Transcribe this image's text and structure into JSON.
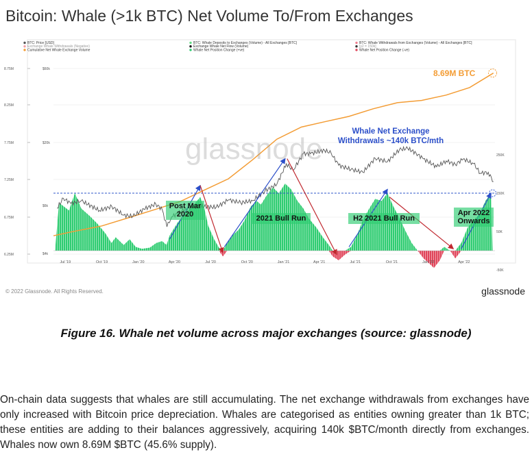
{
  "title": "Bitcoin: Whale (>1k BTC) Net Volume To/From Exchanges",
  "copyright": "© 2022 Glassnode. All Rights Reserved.",
  "brand": "glassnode",
  "watermark": "glassnode",
  "caption": "Figure 16. Whale net volume across major exchanges (source: glassnode)",
  "paragraph": "On-chain data suggests that whales are still accumulating. The net exchange withdrawals from exchanges have only increased with Bitcoin price depreciation. Whales are categorised as entities owning greater than 1k BTC; these entities are adding to their balances aggressively, acquiring 140k $BTC/month directly from exchanges. Whales now own 8.69M $BTC (45.6% supply).",
  "chart_data": {
    "type": "area",
    "legend": [
      {
        "label": "BTC: Price [USD]",
        "color": "#555555"
      },
      {
        "label": "Exchange Whale Withdrawals (Negative)",
        "color": "#f2a0a8"
      },
      {
        "label": "Cumulative Net Whale Exchange Volume",
        "color": "#f39c34"
      },
      {
        "label": "BTC: Whale Deposits to Exchanges (Volume) - All Exchanges [BTC]",
        "color": "#66dd88"
      },
      {
        "label": "Exchange Whale Net Flow (Volume)",
        "color": "#111111"
      },
      {
        "label": "Whale Net Position Change (+ve)",
        "color": "#2ecc71"
      },
      {
        "label": "BTC: Whale Withdrawals from Exchanges (Volume) - All Exchanges [BTC]",
        "color": "#f08090"
      },
      {
        "label": "[y2 = 150k]",
        "color": "#333333"
      },
      {
        "label": "Whale Net Position Change (-ve)",
        "color": "#e0455a"
      }
    ],
    "x_ticks": [
      "Jul '19",
      "Oct '19",
      "Jan '20",
      "Apr '20",
      "Jul '20",
      "Oct '20",
      "Jan '21",
      "Apr '21",
      "Jul '21",
      "Oct '21",
      "Jan '22",
      "Apr '22"
    ],
    "left_axis_1": [
      "8.75M",
      "8.25M",
      "7.75M",
      "7.25M",
      "6.75M",
      "6.25M"
    ],
    "left_axis_2": [
      "$60k",
      "$20k",
      "$6k",
      "$4k"
    ],
    "right_axis": [
      "250K",
      "150K",
      "50K",
      "-50K"
    ],
    "annotations": {
      "holdings": "8.69M BTC",
      "withdrawals": "Whale Net Exchange\nWithdrawals ~140k BTC/mth",
      "phase1": "Post Mar\n2020",
      "phase2": "2021 Bull Run",
      "phase3": "H2 2021 Bull Run",
      "phase4": "Apr 2022\nOnwards"
    },
    "net_position_change": [
      {
        "x": "2019-06-05",
        "y": 0
      },
      {
        "x": "2019-06-15",
        "y": 125
      },
      {
        "x": "2019-07-10",
        "y": 105
      },
      {
        "x": "2019-07-25",
        "y": 150
      },
      {
        "x": "2019-08-10",
        "y": 110
      },
      {
        "x": "2019-09-01",
        "y": 90
      },
      {
        "x": "2019-09-20",
        "y": 70
      },
      {
        "x": "2019-10-10",
        "y": 45
      },
      {
        "x": "2019-10-25",
        "y": 20
      },
      {
        "x": "2019-11-05",
        "y": 35
      },
      {
        "x": "2019-11-25",
        "y": 15
      },
      {
        "x": "2019-12-10",
        "y": 30
      },
      {
        "x": "2019-12-25",
        "y": 10
      },
      {
        "x": "2020-01-10",
        "y": 5
      },
      {
        "x": "2020-01-30",
        "y": 8
      },
      {
        "x": "2020-02-15",
        "y": 20
      },
      {
        "x": "2020-03-01",
        "y": 25
      },
      {
        "x": "2020-03-12",
        "y": 15
      },
      {
        "x": "2020-03-20",
        "y": 40
      },
      {
        "x": "2020-04-10",
        "y": 75
      },
      {
        "x": "2020-05-01",
        "y": 100
      },
      {
        "x": "2020-05-20",
        "y": 120
      },
      {
        "x": "2020-06-05",
        "y": 140
      },
      {
        "x": "2020-06-15",
        "y": 112
      },
      {
        "x": "2020-06-25",
        "y": 65
      },
      {
        "x": "2020-07-10",
        "y": 30
      },
      {
        "x": "2020-07-22",
        "y": 8
      },
      {
        "x": "2020-08-01",
        "y": -15
      },
      {
        "x": "2020-08-12",
        "y": 20
      },
      {
        "x": "2020-08-25",
        "y": 40
      },
      {
        "x": "2020-09-10",
        "y": 55
      },
      {
        "x": "2020-09-25",
        "y": 80
      },
      {
        "x": "2020-10-10",
        "y": 115
      },
      {
        "x": "2020-10-25",
        "y": 130
      },
      {
        "x": "2020-11-05",
        "y": 120
      },
      {
        "x": "2020-11-20",
        "y": 145
      },
      {
        "x": "2020-12-05",
        "y": 165
      },
      {
        "x": "2020-12-20",
        "y": 150
      },
      {
        "x": "2021-01-05",
        "y": 175
      },
      {
        "x": "2021-01-20",
        "y": 160
      },
      {
        "x": "2021-02-05",
        "y": 130
      },
      {
        "x": "2021-02-20",
        "y": 110
      },
      {
        "x": "2021-03-05",
        "y": 85
      },
      {
        "x": "2021-03-25",
        "y": 60
      },
      {
        "x": "2021-04-10",
        "y": 35
      },
      {
        "x": "2021-04-25",
        "y": 15
      },
      {
        "x": "2021-05-05",
        "y": -15
      },
      {
        "x": "2021-05-20",
        "y": -25
      },
      {
        "x": "2021-06-05",
        "y": -10
      },
      {
        "x": "2021-06-20",
        "y": 10
      },
      {
        "x": "2021-07-05",
        "y": 40
      },
      {
        "x": "2021-07-20",
        "y": 80
      },
      {
        "x": "2021-08-05",
        "y": 110
      },
      {
        "x": "2021-08-20",
        "y": 135
      },
      {
        "x": "2021-09-05",
        "y": 130
      },
      {
        "x": "2021-09-20",
        "y": 150
      },
      {
        "x": "2021-10-05",
        "y": 115
      },
      {
        "x": "2021-10-20",
        "y": 85
      },
      {
        "x": "2021-11-05",
        "y": 50
      },
      {
        "x": "2021-11-20",
        "y": 20
      },
      {
        "x": "2021-12-05",
        "y": 0
      },
      {
        "x": "2021-12-20",
        "y": -20
      },
      {
        "x": "2022-01-05",
        "y": -35
      },
      {
        "x": "2022-01-15",
        "y": -45
      },
      {
        "x": "2022-01-30",
        "y": -25
      },
      {
        "x": "2022-02-10",
        "y": 10
      },
      {
        "x": "2022-02-25",
        "y": 0
      },
      {
        "x": "2022-03-10",
        "y": -20
      },
      {
        "x": "2022-03-25",
        "y": 20
      },
      {
        "x": "2022-04-10",
        "y": 60
      },
      {
        "x": "2022-04-25",
        "y": 80
      },
      {
        "x": "2022-05-10",
        "y": 95
      },
      {
        "x": "2022-05-25",
        "y": 130
      },
      {
        "x": "2022-06-08",
        "y": 150
      },
      {
        "x": "2022-06-12",
        "y": 0
      }
    ],
    "btc_price_usd": [
      {
        "x": "2019-06-10",
        "y": 9000
      },
      {
        "x": "2019-06-26",
        "y": 12500
      },
      {
        "x": "2019-07-15",
        "y": 10500
      },
      {
        "x": "2019-08-10",
        "y": 11500
      },
      {
        "x": "2019-09-25",
        "y": 8300
      },
      {
        "x": "2019-10-26",
        "y": 9500
      },
      {
        "x": "2019-11-25",
        "y": 7100
      },
      {
        "x": "2019-12-18",
        "y": 6800
      },
      {
        "x": "2020-01-15",
        "y": 8700
      },
      {
        "x": "2020-02-14",
        "y": 10300
      },
      {
        "x": "2020-03-01",
        "y": 8600
      },
      {
        "x": "2020-03-13",
        "y": 4800
      },
      {
        "x": "2020-03-25",
        "y": 6700
      },
      {
        "x": "2020-04-30",
        "y": 8800
      },
      {
        "x": "2020-06-01",
        "y": 9700
      },
      {
        "x": "2020-07-15",
        "y": 9200
      },
      {
        "x": "2020-08-15",
        "y": 11900
      },
      {
        "x": "2020-09-15",
        "y": 10800
      },
      {
        "x": "2020-10-15",
        "y": 11500
      },
      {
        "x": "2020-11-15",
        "y": 16000
      },
      {
        "x": "2020-12-15",
        "y": 20000
      },
      {
        "x": "2021-01-08",
        "y": 40000
      },
      {
        "x": "2021-01-25",
        "y": 32000
      },
      {
        "x": "2021-02-20",
        "y": 56000
      },
      {
        "x": "2021-03-10",
        "y": 56000
      },
      {
        "x": "2021-04-14",
        "y": 63000
      },
      {
        "x": "2021-05-01",
        "y": 57000
      },
      {
        "x": "2021-05-20",
        "y": 38000
      },
      {
        "x": "2021-06-20",
        "y": 33000
      },
      {
        "x": "2021-07-20",
        "y": 30000
      },
      {
        "x": "2021-08-20",
        "y": 48000
      },
      {
        "x": "2021-09-20",
        "y": 43000
      },
      {
        "x": "2021-10-20",
        "y": 64000
      },
      {
        "x": "2021-11-10",
        "y": 67000
      },
      {
        "x": "2021-12-01",
        "y": 57000
      },
      {
        "x": "2021-12-20",
        "y": 47000
      },
      {
        "x": "2022-01-22",
        "y": 36000
      },
      {
        "x": "2022-02-15",
        "y": 44000
      },
      {
        "x": "2022-03-10",
        "y": 39000
      },
      {
        "x": "2022-03-30",
        "y": 47000
      },
      {
        "x": "2022-04-25",
        "y": 40000
      },
      {
        "x": "2022-05-12",
        "y": 29000
      },
      {
        "x": "2022-06-01",
        "y": 30000
      },
      {
        "x": "2022-06-14",
        "y": 22000
      }
    ],
    "cumulative_net_whale_volume_btc": [
      {
        "x": "2019-06-01",
        "y": 6.55
      },
      {
        "x": "2019-07-15",
        "y": 6.6
      },
      {
        "x": "2019-10-01",
        "y": 6.68
      },
      {
        "x": "2019-12-15",
        "y": 6.8
      },
      {
        "x": "2020-02-15",
        "y": 6.9
      },
      {
        "x": "2020-04-15",
        "y": 7.0
      },
      {
        "x": "2020-06-15",
        "y": 7.15
      },
      {
        "x": "2020-08-15",
        "y": 7.3
      },
      {
        "x": "2020-10-15",
        "y": 7.55
      },
      {
        "x": "2020-12-15",
        "y": 7.82
      },
      {
        "x": "2021-02-15",
        "y": 7.98
      },
      {
        "x": "2021-04-15",
        "y": 8.05
      },
      {
        "x": "2021-06-15",
        "y": 8.12
      },
      {
        "x": "2021-08-15",
        "y": 8.22
      },
      {
        "x": "2021-10-15",
        "y": 8.3
      },
      {
        "x": "2021-12-15",
        "y": 8.33
      },
      {
        "x": "2022-02-15",
        "y": 8.4
      },
      {
        "x": "2022-04-15",
        "y": 8.5
      },
      {
        "x": "2022-06-14",
        "y": 8.69
      }
    ],
    "y_ref_line_k": 150
  }
}
